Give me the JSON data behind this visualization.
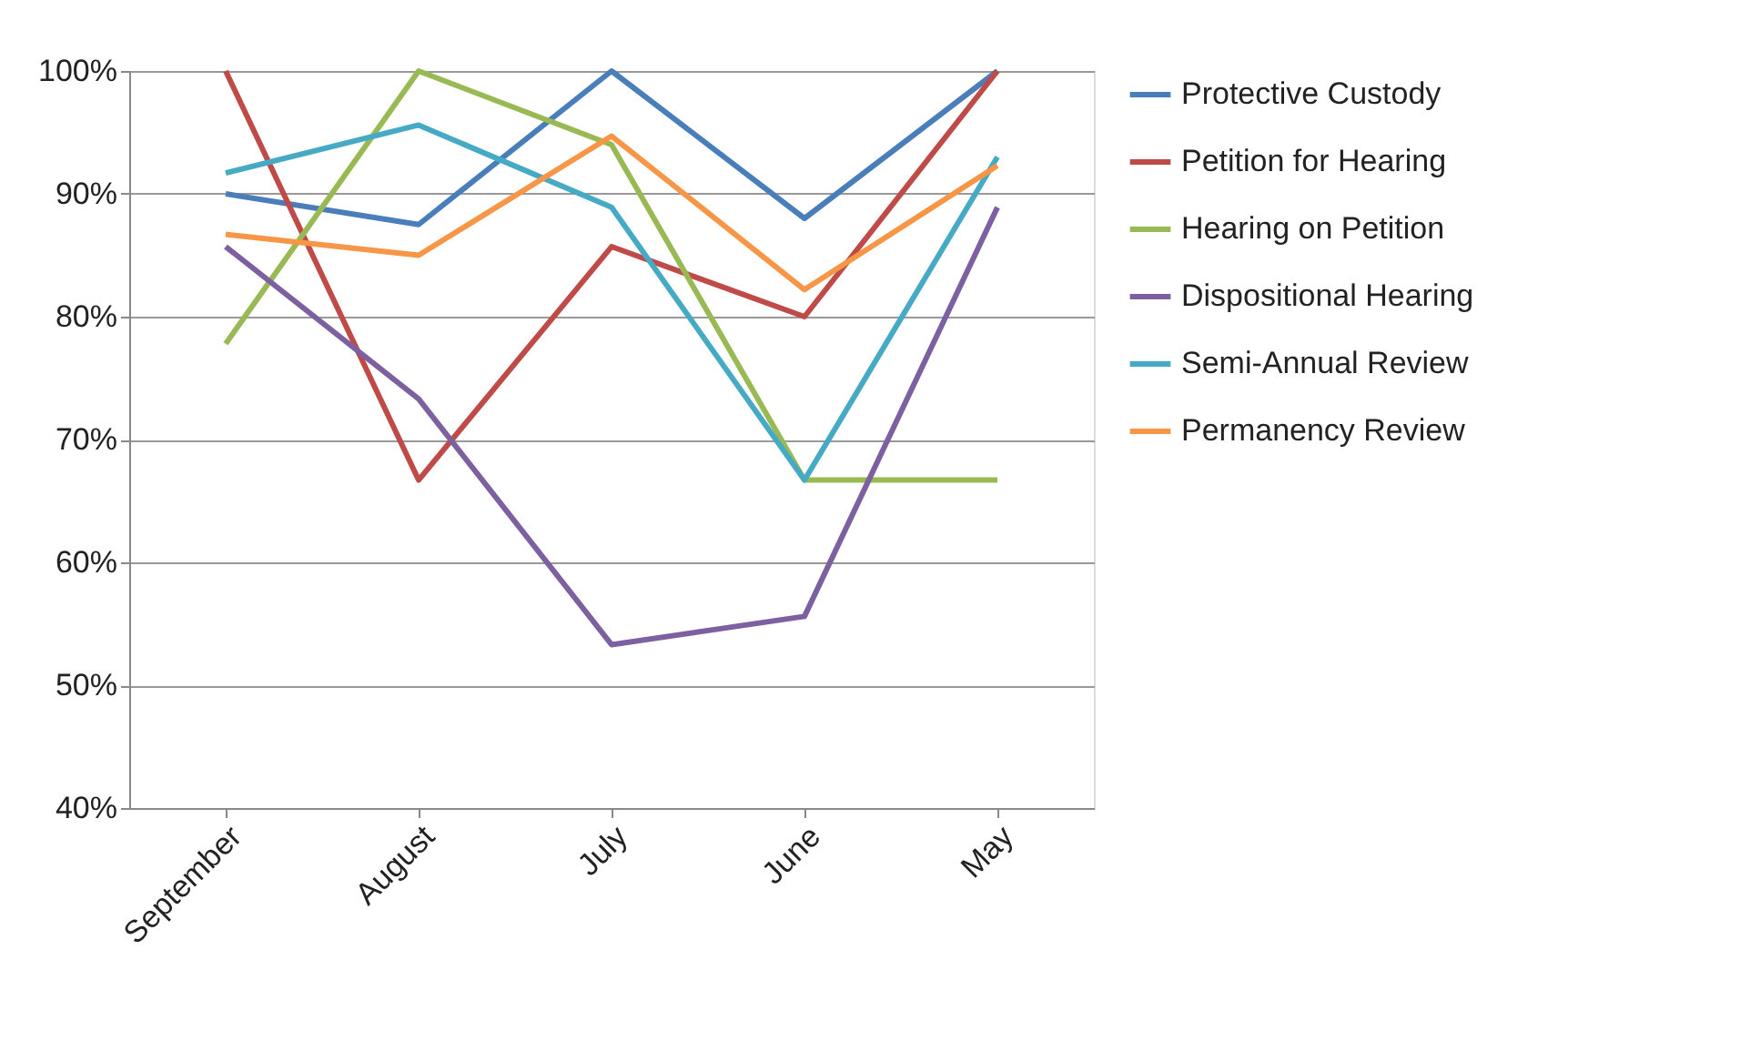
{
  "chart_data": {
    "type": "line",
    "categories": [
      "September",
      "August",
      "July",
      "June",
      "May"
    ],
    "series": [
      {
        "name": "Protective Custody",
        "color": "#4a7ebb",
        "values": [
          90,
          87.5,
          100,
          88,
          100
        ]
      },
      {
        "name": "Petition for Hearing",
        "color": "#be4b48",
        "values": [
          100,
          66.7,
          85.7,
          80,
          100
        ]
      },
      {
        "name": "Hearing on Petition",
        "color": "#98b954",
        "values": [
          77.8,
          100,
          94,
          66.7,
          66.7
        ]
      },
      {
        "name": "Dispositional Hearing",
        "color": "#7d60a0",
        "values": [
          85.7,
          73.3,
          53.3,
          55.6,
          88.9
        ]
      },
      {
        "name": "Semi-Annual Review",
        "color": "#46aac5",
        "values": [
          91.7,
          95.6,
          88.9,
          66.7,
          93
        ]
      },
      {
        "name": "Permanency Review",
        "color": "#f79646",
        "values": [
          86.7,
          85,
          94.7,
          82.2,
          92.3
        ]
      }
    ],
    "ylim": [
      40,
      100
    ],
    "yticks": [
      {
        "value": 40,
        "label": "40%"
      },
      {
        "value": 50,
        "label": "50%"
      },
      {
        "value": 60,
        "label": "60%"
      },
      {
        "value": 70,
        "label": "70%"
      },
      {
        "value": 80,
        "label": "80%"
      },
      {
        "value": 90,
        "label": "90%"
      },
      {
        "value": 100,
        "label": "100%"
      }
    ],
    "grid": "y",
    "legend": "right",
    "marker": "none",
    "line_style": "solid"
  }
}
